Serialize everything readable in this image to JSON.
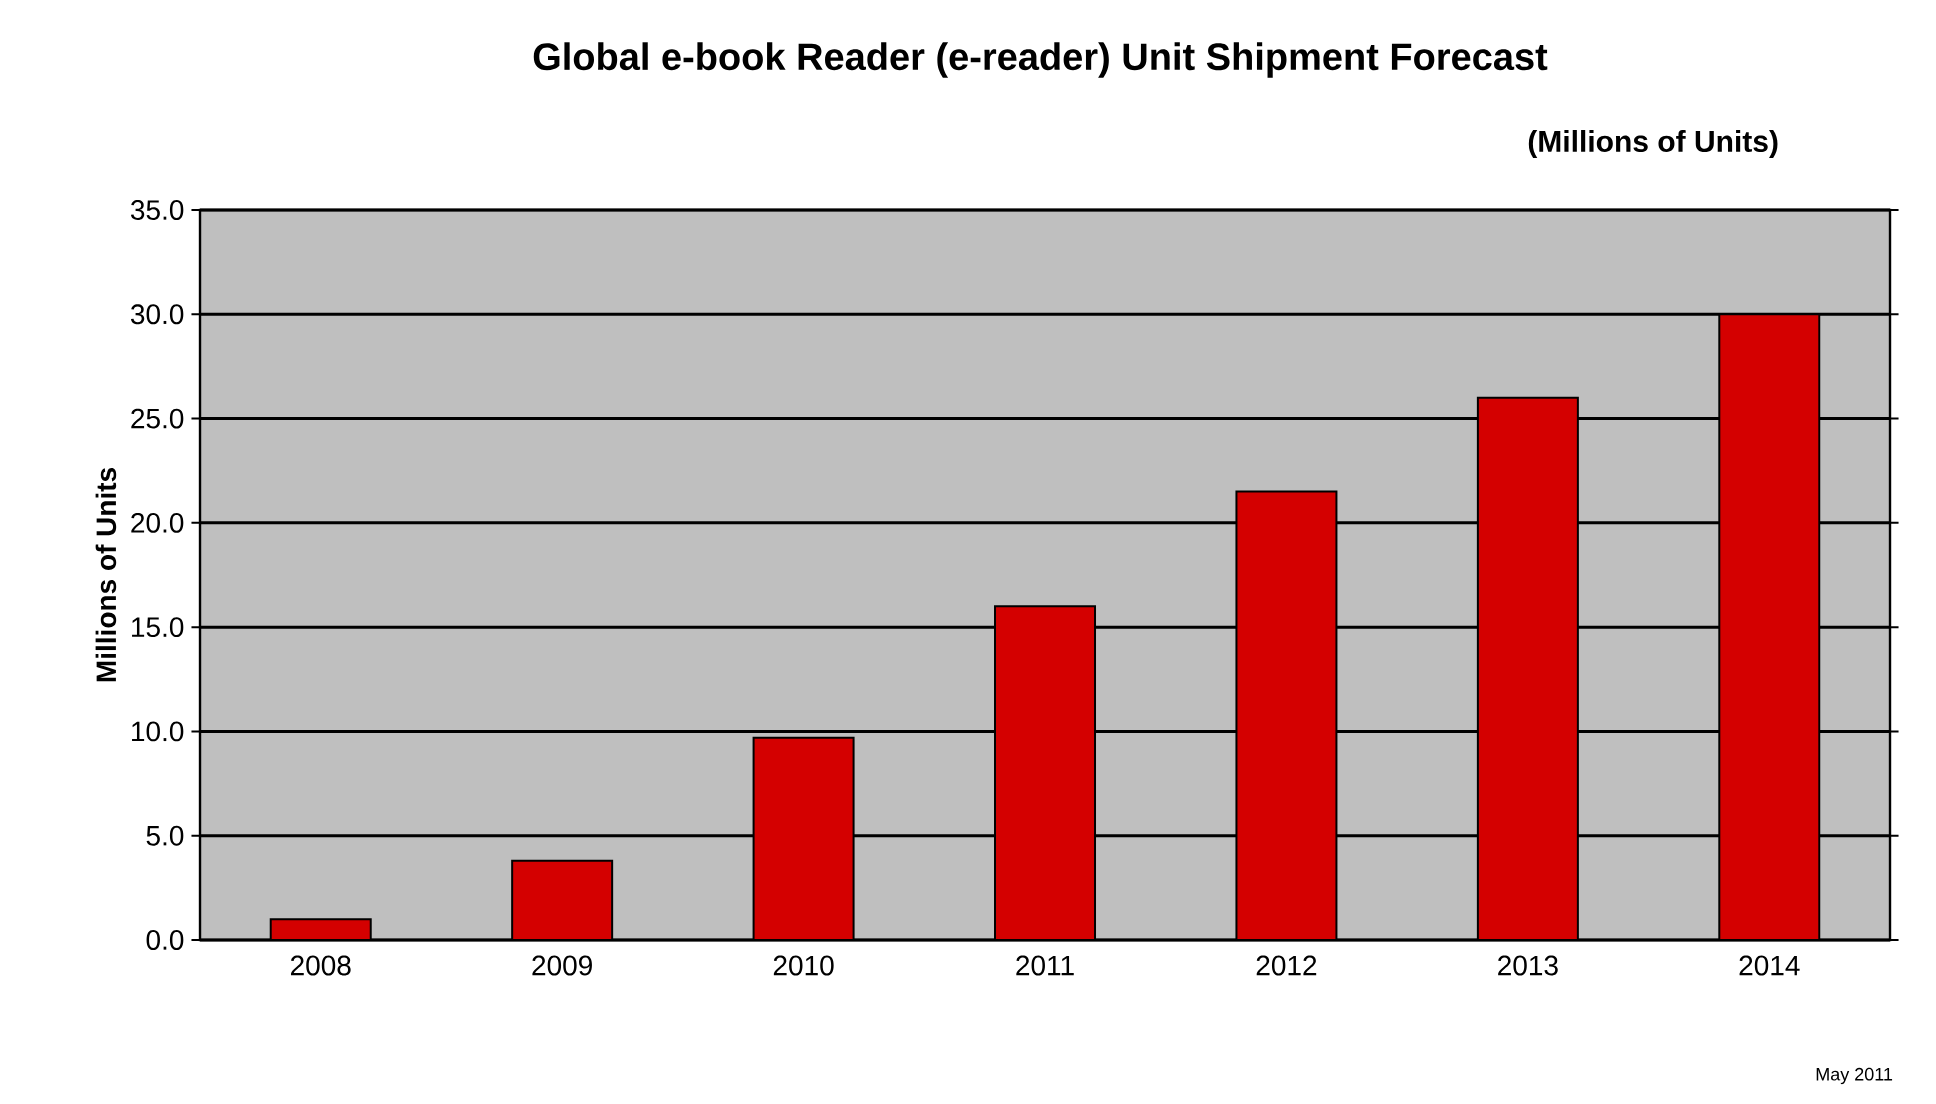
{
  "chart_data": {
    "type": "bar",
    "title": "Global e-book Reader (e-reader) Unit Shipment Forecast",
    "subtitle": "(Millions of Units)",
    "ylabel": "Millions of Units",
    "annotations": [
      "May 2011"
    ],
    "categories": [
      "2008",
      "2009",
      "2010",
      "2011",
      "2012",
      "2013",
      "2014"
    ],
    "values": [
      1.0,
      3.8,
      9.7,
      16.0,
      21.5,
      26.0,
      30.0
    ],
    "color": "#d40000",
    "ylim": [
      0,
      35
    ],
    "yticks": [
      {
        "value": 0,
        "label": "0.0"
      },
      {
        "value": 5,
        "label": "5.0"
      },
      {
        "value": 10,
        "label": "10.0"
      },
      {
        "value": 15,
        "label": "15.0"
      },
      {
        "value": 20,
        "label": "20.0"
      },
      {
        "value": 25,
        "label": "25.0"
      },
      {
        "value": 30,
        "label": "30.0"
      },
      {
        "value": 35,
        "label": "35.0"
      }
    ],
    "grid": "y"
  }
}
